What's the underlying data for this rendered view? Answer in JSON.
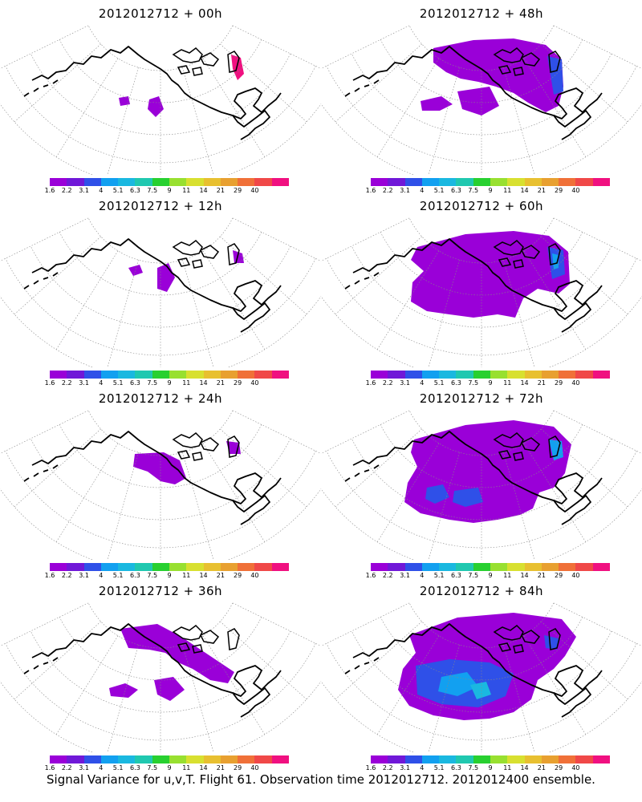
{
  "caption": "Signal Variance for u,v,T. Flight 61. Observation time 2012012712. 2012012400 ensemble.",
  "colorbar": {
    "labels": [
      "1.6",
      "2.2",
      "3.1",
      "4",
      "5.1",
      "6.3",
      "7.5",
      "9",
      "11",
      "14",
      "21",
      "29",
      "40"
    ],
    "colors": [
      "#9a00d8",
      "#7018d8",
      "#2f50e8",
      "#12a0f0",
      "#1ab8e0",
      "#20c8b0",
      "#28d030",
      "#98e030",
      "#d8e030",
      "#e8c030",
      "#e8a030",
      "#f07038",
      "#f04848",
      "#f01080"
    ]
  },
  "panels": [
    {
      "title": "2012012712 + 00h",
      "intensity": 0
    },
    {
      "title": "2012012712 + 48h",
      "intensity": 4
    },
    {
      "title": "2012012712 + 12h",
      "intensity": 1
    },
    {
      "title": "2012012712 + 60h",
      "intensity": 5
    },
    {
      "title": "2012012712 + 24h",
      "intensity": 2
    },
    {
      "title": "2012012712 + 72h",
      "intensity": 6
    },
    {
      "title": "2012012712 + 36h",
      "intensity": 3
    },
    {
      "title": "2012012712 + 84h",
      "intensity": 7
    }
  ]
}
